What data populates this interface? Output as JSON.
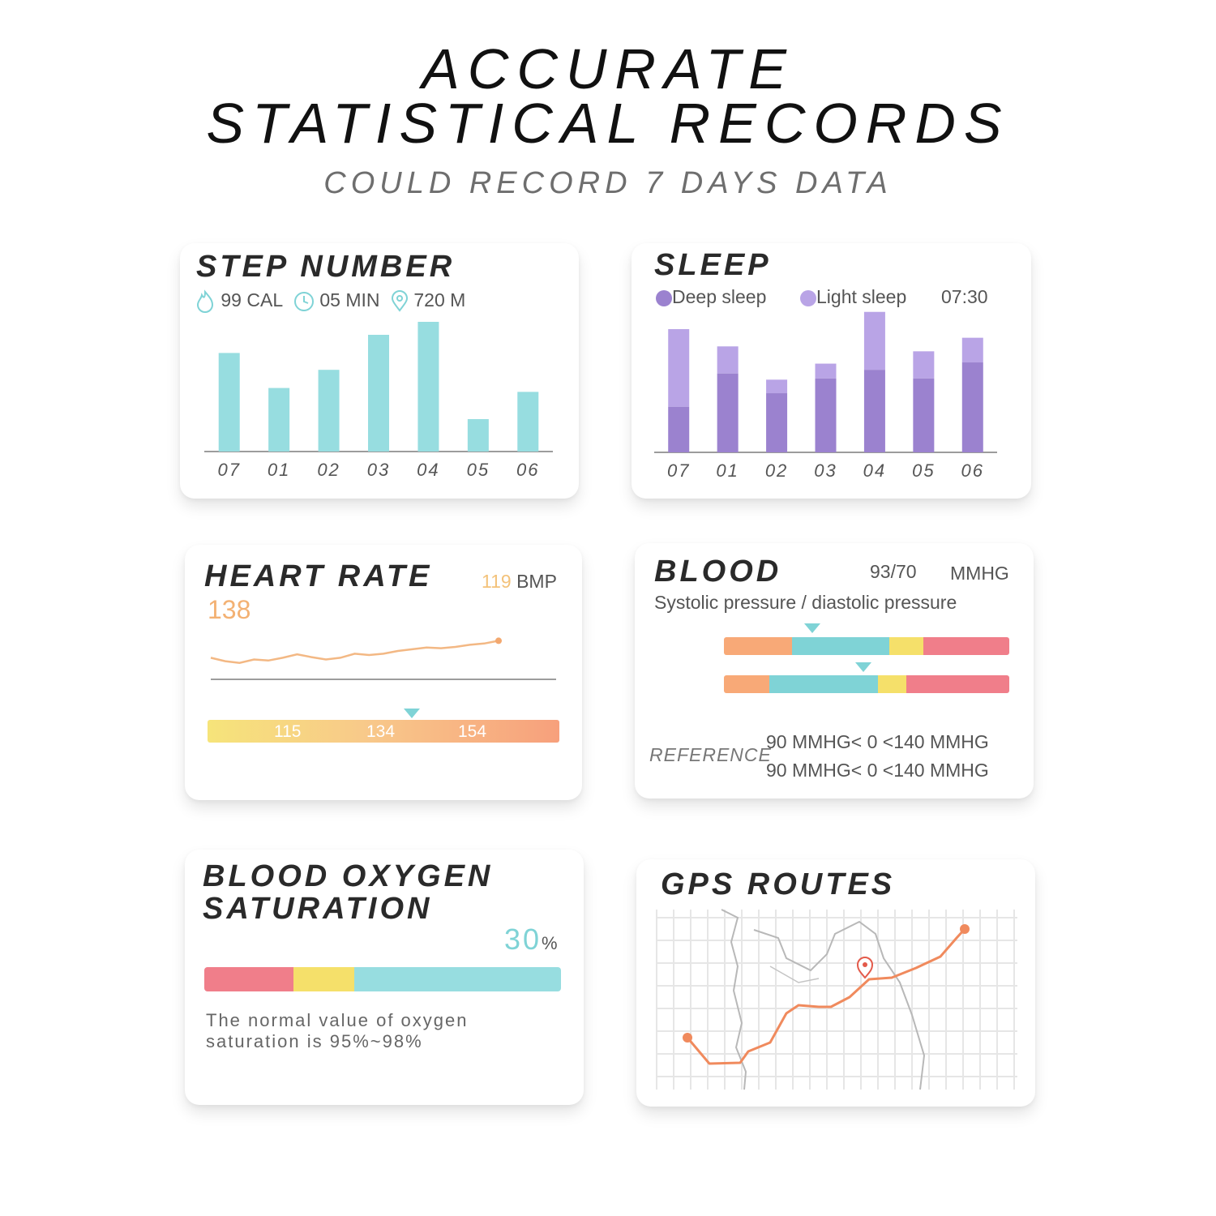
{
  "header": {
    "line1": "ACCURATE",
    "line2": "STATISTICAL RECORDS",
    "subtitle": "COULD RECORD 7 DAYS DATA"
  },
  "step": {
    "title": "STEP NUMBER",
    "cal": "99 CAL",
    "min": "05 MIN",
    "dist": "720 M",
    "days": [
      "07",
      "01",
      "02",
      "03",
      "04",
      "05",
      "06"
    ],
    "values": [
      76,
      49,
      63,
      90,
      100,
      25,
      46
    ],
    "color": "#97dde0"
  },
  "sleep": {
    "title": "SLEEP",
    "deep_label": "Deep sleep",
    "light_label": "Light sleep",
    "total": "07:30",
    "days": [
      "07",
      "01",
      "02",
      "03",
      "04",
      "05",
      "06"
    ],
    "deep": [
      37,
      64,
      48,
      60,
      67,
      60,
      73
    ],
    "light": [
      63,
      22,
      11,
      12,
      47,
      22,
      20
    ],
    "deep_color": "#9b82cf",
    "light_color": "#b9a4e6"
  },
  "heart": {
    "title": "HEART RATE",
    "current": "138",
    "bmp_value": "119",
    "bmp_unit": "BMP",
    "ticks": [
      "115",
      "134",
      "154"
    ],
    "marker": 0.58,
    "line": [
      30,
      20,
      15,
      25,
      22,
      30,
      40,
      32,
      25,
      30,
      42,
      38,
      42,
      50,
      55,
      60,
      58,
      62,
      68,
      72,
      80
    ]
  },
  "blood": {
    "title": "BLOOD",
    "value": "93/70",
    "unit": "MMHG",
    "desc": "Systolic pressure / diastolic pressure",
    "bars": [
      {
        "marker": 0.31,
        "segs": [
          0.24,
          0.34,
          0.12,
          0.3
        ]
      },
      {
        "marker": 0.49,
        "segs": [
          0.16,
          0.38,
          0.1,
          0.36
        ]
      }
    ],
    "colors": [
      "#f8a977",
      "#7fd3d6",
      "#f5e06a",
      "#f07e8a"
    ],
    "ref_label": "REFERENCE",
    "ref1": "90 MMHG< 0 <140 MMHG",
    "ref2": "90 MMHG< 0 <140 MMHG"
  },
  "oxygen": {
    "title1": "BLOOD OXYGEN",
    "title2": "SATURATION",
    "value": "30",
    "unit": "%",
    "segs": [
      0.25,
      0.17,
      0.58
    ],
    "colors": [
      "#f07e8a",
      "#f5e06a",
      "#97dde0"
    ],
    "note1": "The normal value of oxygen",
    "note2": "saturation is 95%~98%"
  },
  "gps": {
    "title": "GPS ROUTES",
    "route_color": "#f08a5d",
    "pin_color": "#e35a4a"
  }
}
